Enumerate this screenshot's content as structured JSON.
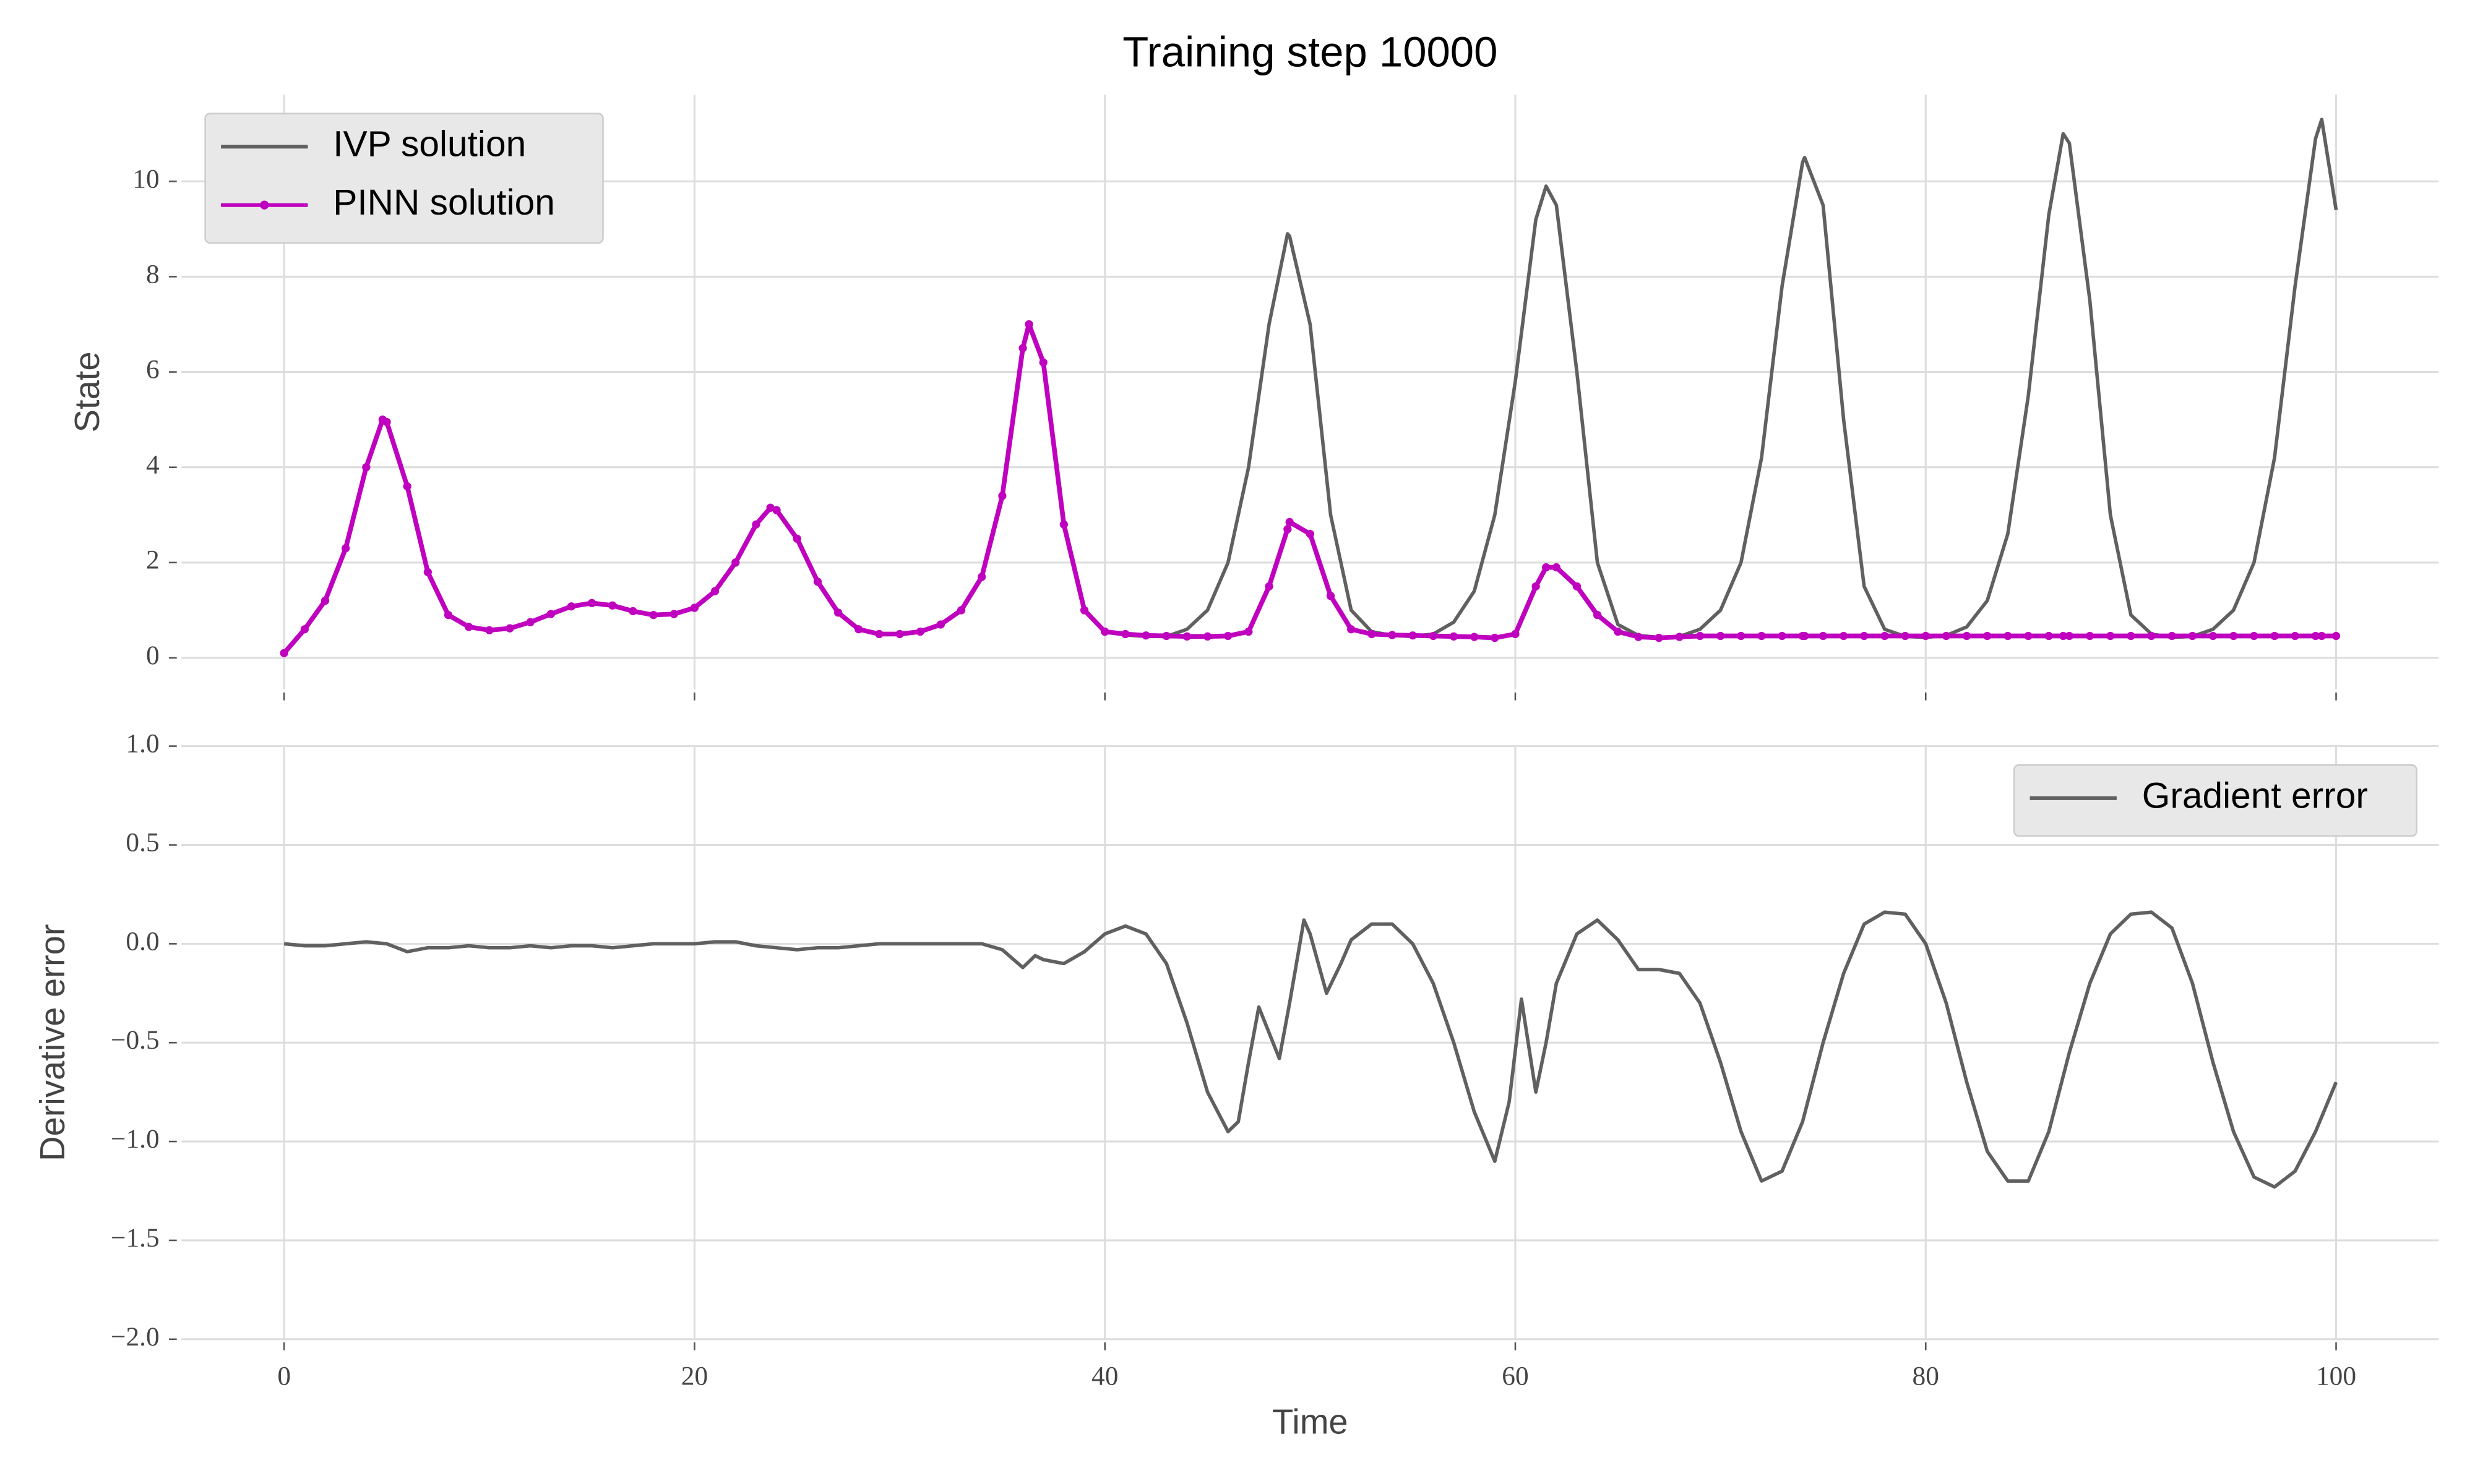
{
  "chart_data": [
    {
      "type": "line",
      "title": "Training step 10000",
      "ylabel": "State",
      "x": [
        0,
        1,
        2,
        3,
        4,
        4.8,
        5,
        6,
        7,
        8,
        9,
        10,
        11,
        12,
        13,
        14,
        15,
        16,
        17,
        18,
        19,
        20,
        21,
        22,
        23,
        23.7,
        24,
        25,
        26,
        27,
        28,
        29,
        30,
        31,
        32,
        33,
        34,
        35,
        36,
        36.3,
        37,
        38,
        39,
        40,
        41,
        42,
        43,
        44,
        45,
        46,
        47,
        48,
        48.9,
        49,
        50,
        51,
        52,
        53,
        54,
        55,
        56,
        57,
        58,
        59,
        60,
        61,
        61.5,
        62,
        63,
        64,
        65,
        66,
        67,
        68,
        69,
        70,
        71,
        72,
        73,
        74,
        74.1,
        75,
        76,
        77,
        78,
        79,
        80,
        81,
        82,
        83,
        84,
        85,
        86,
        86.7,
        87,
        88,
        89,
        90,
        91,
        92,
        93,
        94,
        95,
        96,
        97,
        98,
        99,
        99.3,
        100
      ],
      "series": [
        {
          "name": "IVP solution",
          "color": "#606060",
          "values": [
            0.1,
            0.6,
            1.2,
            2.3,
            4.0,
            5.0,
            4.95,
            3.6,
            1.8,
            0.9,
            0.65,
            0.58,
            0.62,
            0.75,
            0.92,
            1.08,
            1.15,
            1.1,
            0.98,
            0.9,
            0.92,
            1.05,
            1.4,
            2.0,
            2.8,
            3.15,
            3.1,
            2.5,
            1.6,
            0.95,
            0.6,
            0.5,
            0.5,
            0.55,
            0.7,
            1.0,
            1.7,
            3.4,
            6.5,
            7.0,
            6.2,
            2.8,
            1.0,
            0.55,
            0.48,
            0.45,
            0.45,
            0.6,
            1.0,
            2.0,
            4.0,
            7.0,
            8.9,
            8.85,
            7.0,
            3.0,
            1.0,
            0.55,
            0.47,
            0.45,
            0.5,
            0.75,
            1.4,
            3.0,
            5.8,
            9.2,
            9.9,
            9.5,
            6.0,
            2.0,
            0.7,
            0.47,
            0.43,
            0.45,
            0.6,
            1.0,
            2.0,
            4.2,
            7.8,
            10.4,
            10.5,
            9.5,
            5.0,
            1.5,
            0.6,
            0.45,
            0.43,
            0.47,
            0.65,
            1.2,
            2.6,
            5.5,
            9.3,
            11.0,
            10.8,
            7.5,
            3.0,
            0.9,
            0.5,
            0.43,
            0.45,
            0.6,
            1.0,
            2.0,
            4.2,
            7.8,
            10.9,
            11.3,
            9.4
          ]
        },
        {
          "name": "PINN solution",
          "color": "#bf00bf",
          "marker": true,
          "values": [
            0.1,
            0.6,
            1.2,
            2.3,
            4.0,
            5.0,
            4.95,
            3.6,
            1.8,
            0.9,
            0.65,
            0.58,
            0.62,
            0.75,
            0.92,
            1.08,
            1.15,
            1.1,
            0.98,
            0.9,
            0.92,
            1.05,
            1.4,
            2.0,
            2.8,
            3.15,
            3.1,
            2.5,
            1.6,
            0.95,
            0.6,
            0.5,
            0.5,
            0.55,
            0.7,
            1.0,
            1.7,
            3.4,
            6.5,
            7.0,
            6.2,
            2.8,
            1.0,
            0.55,
            0.5,
            0.47,
            0.46,
            0.45,
            0.45,
            0.46,
            0.55,
            1.5,
            2.7,
            2.85,
            2.6,
            1.3,
            0.6,
            0.5,
            0.48,
            0.47,
            0.46,
            0.45,
            0.44,
            0.42,
            0.5,
            1.5,
            1.9,
            1.9,
            1.5,
            0.9,
            0.55,
            0.44,
            0.42,
            0.44,
            0.46,
            0.46,
            0.46,
            0.46,
            0.46,
            0.46,
            0.46,
            0.46,
            0.46,
            0.46,
            0.46,
            0.46,
            0.46,
            0.46,
            0.46,
            0.46,
            0.46,
            0.46,
            0.46,
            0.46,
            0.46,
            0.46,
            0.46,
            0.46,
            0.46,
            0.46,
            0.46,
            0.46,
            0.46,
            0.46,
            0.46,
            0.46,
            0.46,
            0.46,
            0.46
          ]
        }
      ],
      "xlim": [
        -5,
        105
      ],
      "ylim": [
        -0.66,
        11.82
      ],
      "xticks": [
        0,
        20,
        40,
        60,
        80,
        100
      ],
      "yticks": [
        0,
        2,
        4,
        6,
        8,
        10
      ],
      "grid": true,
      "legend": "upper left"
    },
    {
      "type": "line",
      "xlabel": "Time",
      "ylabel": "Derivative error",
      "x": [
        0,
        1,
        2,
        3,
        4,
        5,
        6,
        7,
        8,
        9,
        10,
        11,
        12,
        13,
        14,
        15,
        16,
        17,
        18,
        19,
        20,
        21,
        22,
        23,
        24,
        25,
        26,
        27,
        28,
        29,
        30,
        31,
        32,
        33,
        34,
        35,
        36,
        36.6,
        37,
        38,
        39,
        40,
        41,
        42,
        43,
        44,
        45,
        46,
        46.5,
        47,
        47.5,
        48,
        48.5,
        49,
        49.7,
        50,
        50.8,
        51.5,
        52,
        53,
        54,
        55,
        56,
        57,
        58,
        59,
        59.7,
        60.3,
        61,
        61.5,
        62,
        63,
        64,
        65,
        66,
        67,
        68,
        69,
        70,
        71,
        72,
        73,
        74,
        75,
        76,
        77,
        78,
        79,
        80,
        81,
        82,
        83,
        84,
        85,
        86,
        87,
        88,
        89,
        90,
        91,
        92,
        93,
        94,
        95,
        96,
        97,
        98,
        99,
        100
      ],
      "series": [
        {
          "name": "Gradient error",
          "color": "#606060",
          "values": [
            0,
            -0.01,
            -0.01,
            0,
            0.01,
            0,
            -0.04,
            -0.02,
            -0.02,
            -0.01,
            -0.02,
            -0.02,
            -0.01,
            -0.02,
            -0.01,
            -0.01,
            -0.02,
            -0.01,
            0,
            0,
            0,
            0.01,
            0.01,
            -0.01,
            -0.02,
            -0.03,
            -0.02,
            -0.02,
            -0.01,
            0,
            0,
            0,
            0,
            0,
            0,
            -0.03,
            -0.12,
            -0.06,
            -0.08,
            -0.1,
            -0.04,
            0.05,
            0.09,
            0.05,
            -0.1,
            -0.4,
            -0.75,
            -0.95,
            -0.9,
            -0.6,
            -0.32,
            -0.45,
            -0.58,
            -0.3,
            0.12,
            0.05,
            -0.25,
            -0.1,
            0.02,
            0.1,
            0.1,
            0,
            -0.2,
            -0.5,
            -0.85,
            -1.1,
            -0.8,
            -0.28,
            -0.75,
            -0.5,
            -0.2,
            0.05,
            0.12,
            0.02,
            -0.13,
            -0.13,
            -0.15,
            -0.3,
            -0.6,
            -0.95,
            -1.2,
            -1.15,
            -0.9,
            -0.5,
            -0.15,
            0.1,
            0.16,
            0.15,
            0,
            -0.3,
            -0.7,
            -1.05,
            -1.2,
            -1.2,
            -0.95,
            -0.55,
            -0.2,
            0.05,
            0.15,
            0.16,
            0.08,
            -0.2,
            -0.6,
            -0.95,
            -1.18,
            -1.23,
            -1.15,
            -0.95,
            -0.7
          ]
        }
      ],
      "xlim": [
        -5,
        105
      ],
      "ylim": [
        -2,
        1
      ],
      "xticks": [
        0,
        20,
        40,
        60,
        80,
        100
      ],
      "yticks": [
        {
          "value": -2,
          "label": "−2.0"
        },
        {
          "value": -1.5,
          "label": "−1.5"
        },
        {
          "value": -1,
          "label": "−1.0"
        },
        {
          "value": -0.5,
          "label": "−0.5"
        },
        {
          "value": 0,
          "label": "0.0"
        },
        0.5,
        {
          "value": 1,
          "label": "1.0"
        }
      ],
      "grid": true,
      "legend": "upper right"
    }
  ]
}
